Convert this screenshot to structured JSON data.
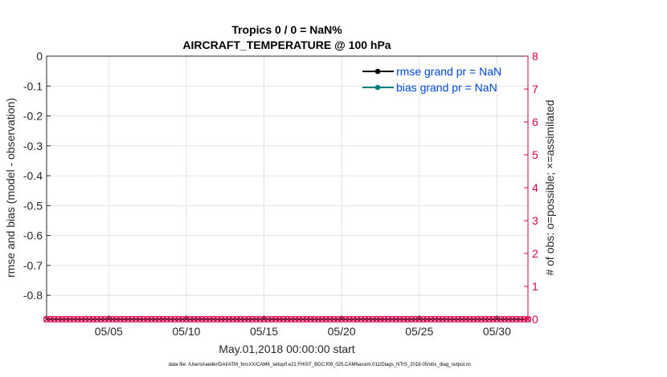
{
  "chart_data": {
    "type": "line",
    "title": [
      "Tropics 0 / 0 = NaN%",
      "AIRCRAFT_TEMPERATURE @ 100 hPa"
    ],
    "xlabel": "May.01,2018 00:00:00 start",
    "ylabel": "rmse and bias (model - observation)",
    "ylabel_right": "# of obs: o=possible; ×=assimilated",
    "xlim_days": [
      1,
      32
    ],
    "ylim": [
      -0.88,
      0
    ],
    "ylim_right": [
      0,
      8
    ],
    "x_ticks": [
      5,
      10,
      15,
      20,
      25,
      30
    ],
    "x_tick_labels": [
      "05/05",
      "05/10",
      "05/15",
      "05/20",
      "05/25",
      "05/30"
    ],
    "y_ticks": [
      0,
      -0.1,
      -0.2,
      -0.3,
      -0.4,
      -0.5,
      -0.6,
      -0.7,
      -0.8
    ],
    "y_tick_labels": [
      "0",
      "-0.1",
      "-0.2",
      "-0.3",
      "-0.4",
      "-0.5",
      "-0.6",
      "-0.7",
      "-0.8"
    ],
    "y_right_ticks": [
      0,
      1,
      2,
      3,
      4,
      5,
      6,
      7,
      8
    ],
    "y_right_tick_labels": [
      "0",
      "1",
      "2",
      "3",
      "4",
      "5",
      "6",
      "7",
      "8"
    ],
    "grid": true,
    "legend": {
      "position": "top-right",
      "entries": [
        {
          "label": "rmse grand pr = NaN",
          "color": "#000000",
          "text_color": "#0047d6"
        },
        {
          "label": "bias grand pr = NaN",
          "color": "#008080",
          "text_color": "#0047d6"
        }
      ]
    },
    "series": [
      {
        "name": "rmse",
        "color": "#000000",
        "values": []
      },
      {
        "name": "bias",
        "color": "#008080",
        "values": []
      },
      {
        "name": "obs possible",
        "axis": "right",
        "marker": "o",
        "color": "#d8004a",
        "x_start_day": 1,
        "x_step_day": 0.25,
        "count": 125,
        "value": 0
      },
      {
        "name": "obs assimilated",
        "axis": "right",
        "marker": "x",
        "color": "#d8004a",
        "x_start_day": 1,
        "x_step_day": 0.25,
        "count": 125,
        "value": 0
      }
    ],
    "colors": {
      "right_axis": "#d8004a",
      "grid": "#dcdcdc",
      "axis": "#262626"
    },
    "footnote": "data file: /Users/raeder/DAI/ATM_forcXX/CAM6_setup/f.e21.FHIST_BGC.f09_025.CAM6assim.011/Diags_NTrS_2018-05/obs_diag_output.nc"
  }
}
